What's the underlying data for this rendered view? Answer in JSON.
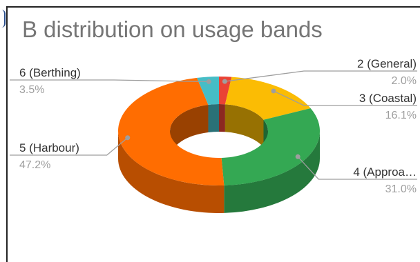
{
  "chart_data": {
    "type": "pie",
    "donut": true,
    "style": "3d",
    "title": "B distribution on usage bands",
    "slices": [
      {
        "label": "2 (General)",
        "percent_label": "2.0%",
        "value": 2.0,
        "color": "#ea4335"
      },
      {
        "label": "3 (Coastal)",
        "percent_label": "16.1%",
        "value": 16.1,
        "color": "#fbbc04"
      },
      {
        "label": "4 (Approa…",
        "percent_label": "31.0%",
        "value": 31.0,
        "color": "#34a853"
      },
      {
        "label": "5 (Harbour)",
        "percent_label": "47.2%",
        "value": 47.2,
        "color": "#ff6d01"
      },
      {
        "label": "6 (Berthing)",
        "percent_label": "3.5%",
        "value": 3.5,
        "color": "#46bdc6"
      }
    ]
  }
}
